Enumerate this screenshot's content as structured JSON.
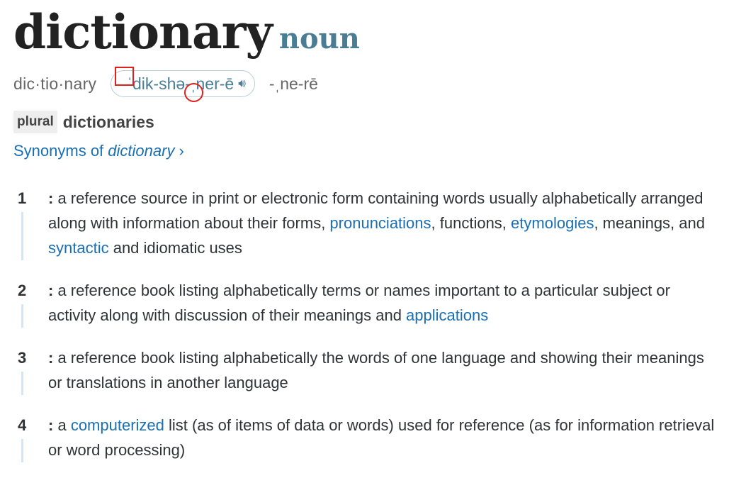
{
  "headword": {
    "word": "dictionary",
    "part_of_speech": "noun"
  },
  "pronunciation": {
    "syllables": "dic·tio·nary",
    "ipa": "ˈdik-shə-ˌner-ē",
    "speaker_icon": "speaker-icon",
    "alternate": "-ˌne-rē"
  },
  "plural": {
    "label": "plural",
    "form": "dictionaries"
  },
  "synonyms_link": {
    "prefix": "Synonyms of",
    "word": "dictionary",
    "chevron": "›"
  },
  "annotation_color": "#e0201c",
  "link_color": "#1a6fb4",
  "senses": [
    {
      "num": "1",
      "parts": [
        {
          "t": "a reference source in print or electronic form containing words usually alphabetically arranged along with information about their forms, "
        },
        {
          "t": "pronunciations",
          "link": true
        },
        {
          "t": ", functions, "
        },
        {
          "t": "etymologies",
          "link": true
        },
        {
          "t": ", meanings, and "
        },
        {
          "t": "syntactic",
          "link": true
        },
        {
          "t": " and idiomatic uses"
        }
      ]
    },
    {
      "num": "2",
      "parts": [
        {
          "t": "a reference book listing alphabetically terms or names important to a particular subject or activity along with discussion of their meanings and "
        },
        {
          "t": "applications",
          "link": true
        }
      ]
    },
    {
      "num": "3",
      "parts": [
        {
          "t": "a reference book listing alphabetically the words of one language and showing their meanings or translations in another language"
        }
      ]
    },
    {
      "num": "4",
      "parts": [
        {
          "t": "a "
        },
        {
          "t": "computerized",
          "link": true
        },
        {
          "t": " list (as of items of data or words) used for reference (as for information retrieval or word processing)"
        }
      ]
    }
  ]
}
